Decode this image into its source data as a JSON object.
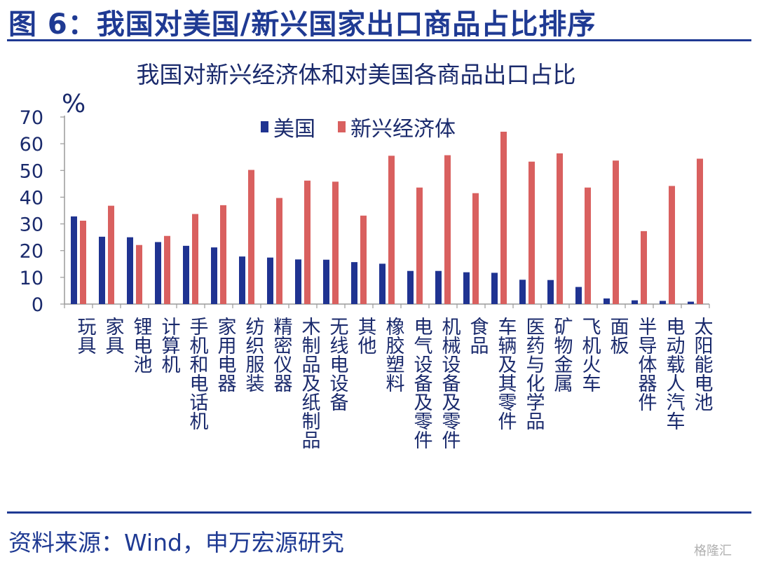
{
  "figure_title": "图 6：我国对美国/新兴国家出口商品占比排序",
  "source": "资料来源：Wind，申万宏源研究",
  "watermark": "格隆汇",
  "colors": {
    "usa": "#1f3391",
    "emerging": "#d9605f",
    "brand": "#1f3a93"
  },
  "chart_data": {
    "type": "bar",
    "title": "我国对新兴经济体和对美国各商品出口占比",
    "ylabel": "%",
    "xlabel": "",
    "ylim": [
      0,
      70
    ],
    "yticks": [
      0,
      10,
      20,
      30,
      40,
      50,
      60,
      70
    ],
    "grid": false,
    "legend": "top-center",
    "categories": [
      "玩具",
      "家具",
      "锂电池",
      "计算机",
      "手机和电话机",
      "家用电器",
      "纺织服装",
      "精密仪器",
      "木制品及纸制品",
      "无线电设备",
      "其他",
      "橡胶塑料",
      "电气设备及零件",
      "机械设备及零件",
      "食品",
      "车辆及其零件",
      "医药与化学品",
      "矿物金属",
      "飞机火车",
      "面板",
      "半导体器件",
      "电动载人汽车",
      "太阳能电池"
    ],
    "series": [
      {
        "name": "美国",
        "values": [
          32.8,
          25.2,
          25.0,
          23.2,
          21.8,
          21.2,
          17.8,
          17.4,
          16.7,
          16.6,
          15.7,
          15.1,
          12.4,
          12.4,
          11.9,
          11.7,
          9.1,
          9.0,
          6.4,
          2.1,
          1.4,
          1.2,
          0.9
        ]
      },
      {
        "name": "新兴经济体",
        "values": [
          31.2,
          36.8,
          22.1,
          25.5,
          33.7,
          37.0,
          50.2,
          39.7,
          46.2,
          45.8,
          33.1,
          55.5,
          43.6,
          55.7,
          41.5,
          64.5,
          53.3,
          56.4,
          43.6,
          53.7,
          27.3,
          44.2,
          54.4
        ]
      }
    ]
  }
}
